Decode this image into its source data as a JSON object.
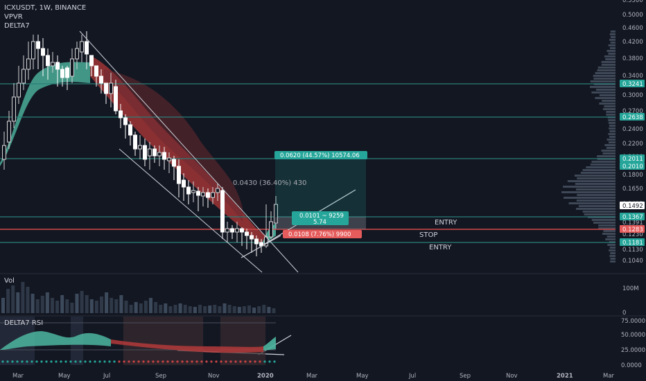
{
  "header": {
    "symbol": "ICXUSDT, 1W, BINANCE",
    "indicator1": "VPVR",
    "indicator2": "DELTA7"
  },
  "colors": {
    "background": "#131722",
    "up": "#ffffff",
    "ribbon_red": "#b33a3a",
    "ribbon_teal": "#4db6a0",
    "hline": "#2a7f7a",
    "price_label_bg": "#26a69a",
    "stop_bg": "#e65b5b",
    "current_price_bg": "#ffffff"
  },
  "price_axis": {
    "ticks": [
      "0.5500",
      "0.5000",
      "0.4600",
      "0.4200",
      "0.3800",
      "0.3400",
      "0.3000",
      "0.2700",
      "0.2400",
      "0.2200",
      "0.2000",
      "0.1800",
      "0.1650",
      "0.1492",
      "0.1391",
      "0.1230",
      "0.1130",
      "0.1040"
    ],
    "labels": [
      {
        "value": "0.3241",
        "kind": "teal"
      },
      {
        "value": "0.2638",
        "kind": "teal"
      },
      {
        "value": "0.2011",
        "kind": "teal"
      },
      {
        "value": "0.2010",
        "kind": "teal"
      },
      {
        "value": "0.1492",
        "kind": "current"
      },
      {
        "value": "0.1367",
        "kind": "teal"
      },
      {
        "value": "0.1283",
        "kind": "red"
      },
      {
        "value": "0.1181",
        "kind": "teal"
      }
    ]
  },
  "time_axis": [
    "Mar",
    "May",
    "Jul",
    "Sep",
    "Nov",
    "2020",
    "Mar",
    "May",
    "Jul",
    "Sep",
    "Nov",
    "2021",
    "Mar"
  ],
  "annotations": {
    "target_box": "0.0620 (44.57%) 10574.06",
    "move_label": "0.0430 (36.40%) 430",
    "risk_box_line1": "0.0101 ~ 9259",
    "risk_box_line2": "5.74",
    "stop_box": "0.0108 (7.76%) 9900",
    "entry_upper": "ENTRY",
    "stop": "STOP",
    "entry_lower": "ENTRY"
  },
  "volume_pane": {
    "title": "Vol",
    "axis_top": "100M",
    "axis_bottom": "0"
  },
  "rsi_pane": {
    "title": "DELTA7 RSI",
    "ticks": [
      "75.0000",
      "50.0000",
      "25.0000",
      "0.0000"
    ]
  }
}
